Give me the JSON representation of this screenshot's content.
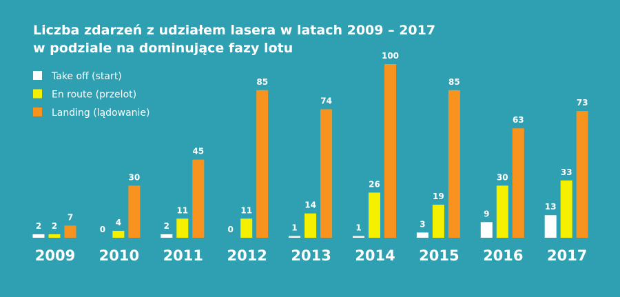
{
  "chart_data": {
    "type": "bar",
    "title": [
      "Liczba zdarzeń z udziałem lasera w latach 2009 – 2017",
      "w podziale na dominujące fazy lotu"
    ],
    "categories": [
      "2009",
      "2010",
      "2011",
      "2012",
      "2013",
      "2014",
      "2015",
      "2016",
      "2017"
    ],
    "series": [
      {
        "name": "Take off (start)",
        "color": "#ffffff",
        "values": [
          2,
          0,
          2,
          0,
          1,
          1,
          3,
          9,
          13
        ]
      },
      {
        "name": "En route (przelot)",
        "color": "#f5f000",
        "values": [
          2,
          4,
          11,
          11,
          14,
          26,
          19,
          30,
          33
        ]
      },
      {
        "name": "Landing (lądowanie)",
        "color": "#f7931e",
        "values": [
          7,
          30,
          45,
          85,
          74,
          100,
          85,
          63,
          73
        ]
      }
    ]
  }
}
